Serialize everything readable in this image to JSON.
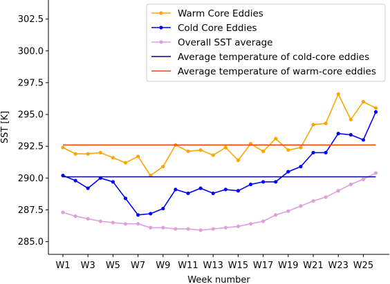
{
  "chart_data": {
    "type": "line",
    "title": "",
    "xlabel": "Week number",
    "ylabel": "SST [K]",
    "categories": [
      "W1",
      "W2",
      "W3",
      "W4",
      "W5",
      "W6",
      "W7",
      "W8",
      "W9",
      "W10",
      "W11",
      "W12",
      "W13",
      "W14",
      "W15",
      "W16",
      "W17",
      "W18",
      "W19",
      "W20",
      "W21",
      "W22",
      "W23",
      "W24",
      "W25",
      "W26"
    ],
    "xtick_labels": [
      "W1",
      "W3",
      "W5",
      "W7",
      "W9",
      "W11",
      "W13",
      "W15",
      "W17",
      "W19",
      "W21",
      "W23",
      "W25"
    ],
    "ylim": [
      284.0,
      304.0
    ],
    "yticks": [
      285.0,
      287.5,
      290.0,
      292.5,
      295.0,
      297.5,
      300.0,
      302.5
    ],
    "ytick_labels": [
      "285.0",
      "287.5",
      "290.0",
      "292.5",
      "295.0",
      "297.5",
      "300.0",
      "302.5"
    ],
    "grid": false,
    "legend_position": "top-right",
    "series": [
      {
        "name": "Warm Core Eddies",
        "color": "#ffa500",
        "marker": true,
        "values": [
          292.4,
          291.9,
          291.9,
          292.0,
          291.6,
          291.2,
          291.7,
          290.2,
          290.9,
          292.6,
          292.1,
          292.2,
          291.8,
          292.4,
          291.4,
          292.7,
          292.1,
          293.1,
          292.2,
          292.4,
          294.2,
          294.3,
          296.6,
          294.6,
          296.0,
          295.5
        ]
      },
      {
        "name": "Cold Core Eddies",
        "color": "#0000ff",
        "marker": true,
        "values": [
          290.2,
          289.8,
          289.2,
          290.0,
          289.7,
          288.4,
          287.1,
          287.2,
          287.6,
          289.1,
          288.8,
          289.2,
          288.8,
          289.1,
          289.0,
          289.5,
          289.7,
          289.7,
          290.5,
          290.9,
          292.0,
          292.0,
          293.5,
          293.4,
          293.0,
          295.2
        ]
      },
      {
        "name": "Overall SST average",
        "color": "#dda0dd",
        "marker": true,
        "values": [
          287.3,
          287.0,
          286.8,
          286.6,
          286.5,
          286.4,
          286.4,
          286.1,
          286.1,
          286.0,
          286.0,
          285.9,
          286.0,
          286.1,
          286.2,
          286.4,
          286.6,
          287.1,
          287.4,
          287.8,
          288.2,
          288.5,
          289.0,
          289.5,
          289.9,
          290.4
        ]
      },
      {
        "name": "Average temperature of cold-core eddies",
        "color": "#00008b",
        "marker": false,
        "values": [
          290.1,
          290.1,
          290.1,
          290.1,
          290.1,
          290.1,
          290.1,
          290.1,
          290.1,
          290.1,
          290.1,
          290.1,
          290.1,
          290.1,
          290.1,
          290.1,
          290.1,
          290.1,
          290.1,
          290.1,
          290.1,
          290.1,
          290.1,
          290.1,
          290.1,
          290.1
        ]
      },
      {
        "name": "Average temperature of warm-core eddies",
        "color": "#ff4500",
        "marker": false,
        "values": [
          292.6,
          292.6,
          292.6,
          292.6,
          292.6,
          292.6,
          292.6,
          292.6,
          292.6,
          292.6,
          292.6,
          292.6,
          292.6,
          292.6,
          292.6,
          292.6,
          292.6,
          292.6,
          292.6,
          292.6,
          292.6,
          292.6,
          292.6,
          292.6,
          292.6,
          292.6
        ]
      }
    ]
  }
}
